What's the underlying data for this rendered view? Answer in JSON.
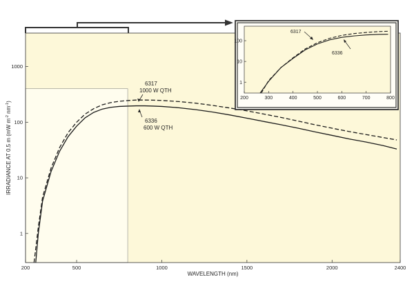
{
  "chart_data": [
    {
      "type": "line",
      "title": "",
      "xlabel": "WAVELENGTH (nm)",
      "ylabel": "IRRADIANCE AT 0.5 m (mW m-2 nm-1)",
      "ylabel_parts": {
        "a": "IRRADIANCE AT 0.5 m (mW m",
        "sup1": "-2",
        "b": " nm",
        "sup2": "-1",
        "c": ")"
      },
      "xlim": [
        200,
        2400
      ],
      "ylim": [
        0.3,
        4000
      ],
      "yscale": "log",
      "x_ticks": [
        200,
        500,
        1000,
        1500,
        2000,
        2400
      ],
      "x_tick_labels": [
        "200",
        "500",
        "1000",
        "1500",
        "2000",
        "2400"
      ],
      "y_ticks": [
        1,
        10,
        100,
        1000
      ],
      "y_tick_labels": [
        "1",
        "10",
        "100",
        "1000"
      ],
      "grid": false,
      "colors": {
        "plot_background": "#fdf8d9",
        "highlight_background": "#fffdee",
        "line": "#1a1a1a",
        "frame": "#333333"
      },
      "highlight_region": {
        "x": [
          200,
          800
        ],
        "y": [
          0.3,
          400
        ]
      },
      "series": [
        {
          "name": "6317",
          "style": "dashed",
          "x": [
            250,
            275,
            300,
            350,
            400,
            450,
            500,
            550,
            600,
            650,
            700,
            750,
            800,
            850,
            900,
            950,
            1000,
            1100,
            1200,
            1300,
            1400,
            1500,
            1600,
            1700,
            1800,
            1900,
            2000,
            2100,
            2200,
            2300,
            2380
          ],
          "y": [
            0.3,
            1.3,
            4.5,
            15,
            35,
            65,
            100,
            140,
            175,
            205,
            225,
            238,
            245,
            250,
            250,
            249,
            246,
            235,
            220,
            200,
            180,
            160,
            140,
            122,
            105,
            90,
            78,
            68,
            60,
            53,
            48
          ]
        },
        {
          "name": "6336",
          "style": "solid",
          "x": [
            260,
            275,
            300,
            350,
            400,
            450,
            500,
            550,
            600,
            650,
            700,
            750,
            800,
            850,
            900,
            950,
            1000,
            1100,
            1200,
            1300,
            1400,
            1500,
            1600,
            1700,
            1800,
            1900,
            2000,
            2100,
            2200,
            2300,
            2380
          ],
          "y": [
            0.3,
            1.0,
            3.8,
            13,
            30,
            55,
            85,
            120,
            150,
            172,
            185,
            192,
            195,
            197,
            197,
            195,
            192,
            182,
            168,
            152,
            135,
            118,
            103,
            90,
            78,
            67,
            58,
            50,
            44,
            38,
            33
          ]
        }
      ],
      "annotations": [
        {
          "lines": [
            "6317",
            "1000 W QTH"
          ],
          "series": "6317"
        },
        {
          "lines": [
            "6336",
            "600 W QTH"
          ],
          "series": "6336"
        }
      ]
    },
    {
      "type": "line",
      "title": "",
      "xlim": [
        200,
        800
      ],
      "ylim": [
        0.3,
        500
      ],
      "yscale": "log",
      "x_ticks": [
        200,
        300,
        400,
        500,
        600,
        700,
        800
      ],
      "x_tick_labels": [
        "200",
        "300",
        "400",
        "500",
        "600",
        "700",
        "800"
      ],
      "y_ticks": [
        1,
        10,
        100
      ],
      "y_tick_labels": [
        "1",
        "10",
        "100"
      ],
      "series": [
        {
          "name": "6317",
          "style": "dashed",
          "x": [
            270,
            300,
            350,
            400,
            450,
            500,
            550,
            600,
            650,
            700,
            750,
            790
          ],
          "y": [
            0.3,
            1.2,
            5,
            15,
            40,
            80,
            130,
            180,
            220,
            250,
            275,
            285
          ]
        },
        {
          "name": "6336",
          "style": "solid",
          "x": [
            265,
            300,
            350,
            400,
            450,
            500,
            550,
            600,
            650,
            700,
            750,
            790
          ],
          "y": [
            0.3,
            1.1,
            5,
            14,
            36,
            70,
            110,
            145,
            170,
            190,
            200,
            205
          ]
        }
      ],
      "annotations": [
        {
          "lines": [
            "6317"
          ],
          "series": "6317"
        },
        {
          "lines": [
            "6336"
          ],
          "series": "6336"
        }
      ]
    }
  ]
}
